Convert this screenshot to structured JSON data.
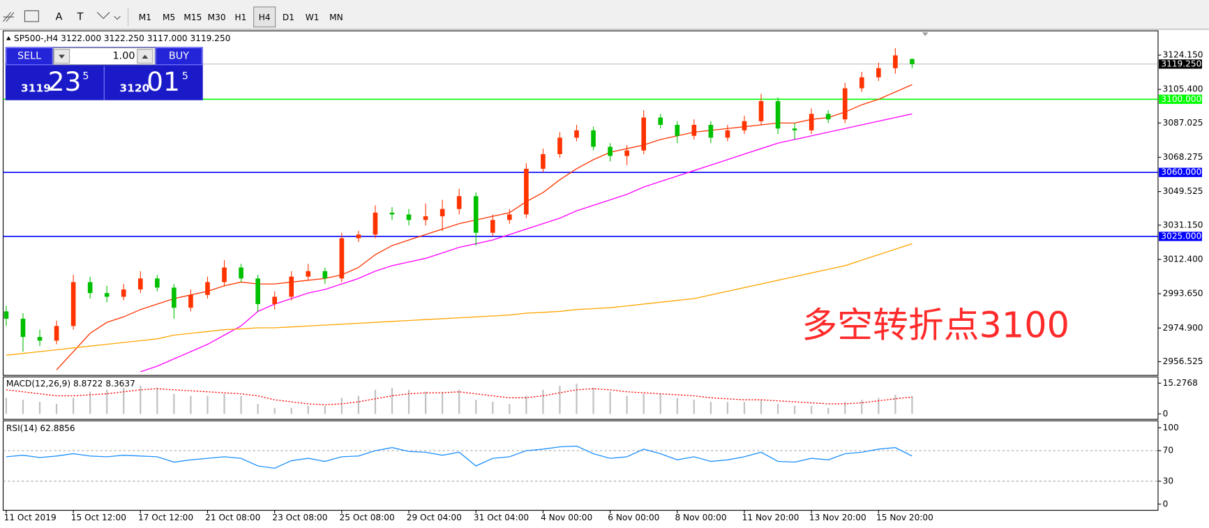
{
  "toolbar": {
    "tools": [
      "A",
      "T"
    ],
    "timeframes": [
      "M1",
      "M5",
      "M15",
      "M30",
      "H1",
      "H4",
      "D1",
      "W1",
      "MN"
    ],
    "active": "H4"
  },
  "trade_panel": {
    "sell": "SELL",
    "lots": "1.00",
    "buy": "BUY",
    "bid": {
      "big": "3119",
      "pips": "23",
      "frac": "5"
    },
    "ask": {
      "big": "3120",
      "pips": "01",
      "frac": "5"
    }
  },
  "chart_data": [
    {
      "type": "candlestick",
      "title": "SP500-,H4  3122.000 3122.250 3117.000 3119.250",
      "annotation": "多空转折点3100",
      "up_color": "#ff3300",
      "down_color": "#00c000",
      "categories": [
        "11 Oct 2019",
        null,
        null,
        null,
        "15 Oct 12:00",
        null,
        null,
        null,
        "17 Oct 12:00",
        null,
        null,
        null,
        "21 Oct 08:00",
        null,
        null,
        null,
        "23 Oct 08:00",
        null,
        null,
        null,
        "25 Oct 08:00",
        null,
        null,
        null,
        "29 Oct 04:00",
        null,
        null,
        null,
        "31 Oct 04:00",
        null,
        null,
        null,
        "4 Nov 00:00",
        null,
        null,
        null,
        "6 Nov 00:00",
        null,
        null,
        null,
        "8 Nov 00:00",
        null,
        null,
        null,
        "11 Nov 20:00",
        null,
        null,
        null,
        "13 Nov 20:00",
        null,
        null,
        null,
        "15 Nov 20:00",
        null,
        null
      ],
      "open": [
        2984,
        2980,
        2970,
        2968,
        2976,
        3000,
        2994,
        2992,
        2996,
        3002,
        2997,
        2986,
        2993,
        3000,
        3008,
        3002,
        2988,
        2992,
        3003,
        3006,
        3002,
        3024,
        3026,
        3038,
        3037,
        3034,
        3036,
        3040,
        3047,
        3027,
        3034,
        3037,
        3062,
        3070,
        3079,
        3083,
        3074,
        3069,
        3072,
        3090,
        3086,
        3080,
        3086,
        3079,
        3083,
        3088,
        3099,
        3084,
        3083,
        3092,
        3089,
        3106,
        3112,
        3117,
        3122
      ],
      "high": [
        2987,
        2983,
        2974,
        2979,
        3004,
        3003,
        2998,
        2999,
        3006,
        3004,
        2999,
        2996,
        3003,
        3012,
        3010,
        3004,
        2995,
        3006,
        3010,
        3008,
        3027,
        3028,
        3042,
        3041,
        3040,
        3043,
        3045,
        3051,
        3049,
        3037,
        3040,
        3065,
        3073,
        3082,
        3086,
        3085,
        3076,
        3075,
        3094,
        3092,
        3088,
        3089,
        3088,
        3086,
        3091,
        3103,
        3101,
        3087,
        3095,
        3094,
        3109,
        3115,
        3120,
        3128,
        3122.25
      ],
      "low": [
        2976,
        2962,
        2965,
        2966,
        2974,
        2991,
        2989,
        2990,
        2994,
        2995,
        2980,
        2984,
        2991,
        2998,
        3000,
        2984,
        2985,
        2990,
        3001,
        2999,
        3000,
        3022,
        3024,
        3034,
        3031,
        3031,
        3028,
        3037,
        3020,
        3025,
        3032,
        3035,
        3060,
        3068,
        3077,
        3072,
        3066,
        3064,
        3070,
        3084,
        3076,
        3078,
        3076,
        3077,
        3081,
        3086,
        3081,
        3078,
        3081,
        3087,
        3087,
        3104,
        3110,
        3114,
        3117
      ],
      "close": [
        2980,
        2970,
        2968,
        2976,
        3000,
        2994,
        2992,
        2996,
        3002,
        2997,
        2986,
        2993,
        3000,
        3008,
        3002,
        2988,
        2992,
        3003,
        3006,
        3002,
        3024,
        3026,
        3038,
        3037,
        3034,
        3036,
        3040,
        3047,
        3027,
        3034,
        3037,
        3062,
        3070,
        3079,
        3083,
        3074,
        3069,
        3072,
        3090,
        3086,
        3080,
        3086,
        3079,
        3083,
        3088,
        3099,
        3084,
        3083,
        3092,
        3089,
        3106,
        3112,
        3117,
        3124,
        3119.25
      ],
      "series": [
        {
          "color": "#ff3300",
          "values": [
            null,
            null,
            null,
            2952,
            2962,
            2972,
            2978,
            2981,
            2985,
            2988,
            2991,
            2993,
            2995,
            2998,
            3000,
            2999,
            2999,
            3000,
            3001,
            3002,
            3004,
            3008,
            3015,
            3020,
            3023,
            3026,
            3029,
            3032,
            3034,
            3036,
            3038,
            3044,
            3049,
            3056,
            3062,
            3067,
            3071,
            3073,
            3075,
            3078,
            3080,
            3082,
            3083,
            3084,
            3085,
            3086,
            3087,
            3087,
            3089,
            3090,
            3093,
            3097,
            3100,
            3104,
            3108
          ]
        },
        {
          "color": "#ff00ff",
          "values": [
            null,
            null,
            null,
            null,
            null,
            null,
            null,
            null,
            2951,
            2954,
            2958,
            2962,
            2966,
            2971,
            2976,
            2984,
            2988,
            2991,
            2994,
            2996,
            2999,
            3002,
            3006,
            3009,
            3011,
            3013,
            3016,
            3019,
            3021,
            3023,
            3026,
            3029,
            3032,
            3035,
            3039,
            3042,
            3045,
            3048,
            3052,
            3055,
            3058,
            3061,
            3064,
            3067,
            3070,
            3073,
            3076,
            3078,
            3080,
            3082,
            3084,
            3086,
            3088,
            3090,
            3092
          ]
        },
        {
          "color": "#ffa500",
          "values": [
            2960,
            2961,
            2962,
            2963,
            2964,
            2965,
            2966,
            2967,
            2968,
            2969,
            2971,
            2972,
            2973,
            2974,
            2974.4,
            2975,
            2975,
            2975.5,
            2976,
            2976.5,
            2977,
            2977.5,
            2978,
            2978.5,
            2979,
            2979.5,
            2980,
            2980.5,
            2981,
            2981.5,
            2982,
            2983,
            2983.5,
            2984,
            2985,
            2985.5,
            2986,
            2987,
            2988,
            2989,
            2990,
            2991,
            2993,
            2995,
            2997,
            2999,
            3001,
            3003,
            3005,
            3007,
            3009,
            3012,
            3015,
            3018,
            3021
          ]
        }
      ],
      "levels": [
        {
          "value": 3100,
          "label": "3100.000",
          "color": "#00ff00"
        },
        {
          "value": 3060,
          "label": "3060.000",
          "color": "#0000ff"
        },
        {
          "value": 3025,
          "label": "3025.000",
          "color": "#0000ff"
        }
      ],
      "last": {
        "value": 3119.25,
        "label": "3119.250"
      },
      "ylim": [
        2949,
        3137
      ],
      "yticks": [
        {
          "value": 3124.15,
          "label": "3124.150"
        },
        {
          "value": 3105.4,
          "label": "3105.400"
        },
        {
          "value": 3087.025,
          "label": "3087.025"
        },
        {
          "value": 3068.275,
          "label": "3068.275"
        },
        {
          "value": 3049.525,
          "label": "3049.525"
        },
        {
          "value": 3031.15,
          "label": "3031.150"
        },
        {
          "value": 3012.4,
          "label": "3012.400"
        },
        {
          "value": 2993.65,
          "label": "2993.650"
        },
        {
          "value": 2974.9,
          "label": "2974.900"
        },
        {
          "value": 2956.525,
          "label": "2956.525"
        }
      ]
    },
    {
      "type": "macd",
      "title": "MACD(12,26,9) 8.8722 8.3637",
      "series": [
        {
          "color": "#c0c0c0",
          "values": [
            8,
            7,
            6,
            5,
            8,
            11,
            12,
            13,
            14,
            13,
            10,
            9,
            9,
            10,
            9,
            5,
            3,
            3,
            4,
            4,
            8,
            9,
            12,
            13,
            12,
            11,
            11,
            12,
            7,
            6,
            5,
            9,
            12,
            14,
            15,
            13,
            11,
            9,
            10,
            10,
            8,
            7,
            6,
            6,
            6,
            7,
            5,
            4,
            4,
            3,
            6,
            7,
            8,
            9.5,
            8.8722
          ]
        },
        {
          "color": "#ff0000",
          "line_style": "dotted",
          "values": [
            12,
            11,
            10,
            9,
            9,
            9.5,
            10,
            11,
            12,
            12.5,
            12,
            11.5,
            11,
            10.5,
            10,
            9,
            7,
            6,
            5,
            4.5,
            5,
            6,
            7.5,
            9,
            10,
            10.5,
            10.5,
            11,
            10,
            9,
            8,
            8,
            9,
            10.5,
            12,
            12.5,
            12,
            11,
            10.5,
            10,
            9.5,
            9,
            8,
            7.5,
            7,
            7,
            6.5,
            6,
            5.5,
            5,
            5,
            5.5,
            6.5,
            7.5,
            8.3637
          ]
        }
      ],
      "ylim": [
        -2.7,
        18
      ],
      "yticks": [
        15.2768,
        0
      ]
    },
    {
      "type": "line",
      "title": "RSI(14) 62.8856",
      "series": [
        {
          "color": "#1e90ff",
          "values": [
            62,
            64,
            61,
            63,
            66,
            63,
            62,
            64,
            63,
            62,
            55,
            58,
            60,
            62,
            60,
            50,
            47,
            57,
            60,
            56,
            62,
            63,
            70,
            74,
            69,
            68,
            64,
            68,
            50,
            60,
            62,
            70,
            72,
            75,
            76,
            66,
            60,
            62,
            72,
            66,
            58,
            62,
            56,
            58,
            62,
            68,
            56,
            55,
            60,
            58,
            66,
            68,
            72,
            74,
            62.8856
          ]
        }
      ],
      "levels": [
        70,
        30
      ],
      "ylim": [
        -8,
        108
      ],
      "yticks": [
        100,
        70,
        30,
        0
      ]
    }
  ]
}
